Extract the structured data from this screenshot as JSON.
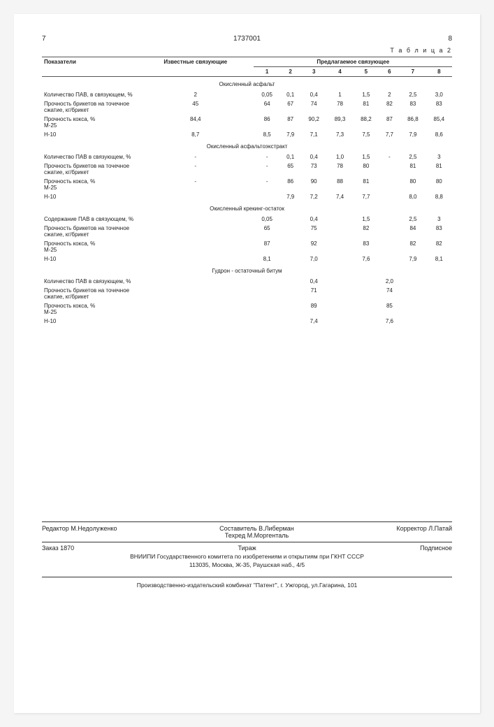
{
  "page_left": "7",
  "doc_number": "1737001",
  "page_right": "8",
  "table_label": "Т а б л и ц а 2",
  "header": {
    "col_label": "Показатели",
    "known": "Известные связующие",
    "proposed": "Предлагаемое связующее",
    "nums": [
      "1",
      "2",
      "3",
      "4",
      "5",
      "6",
      "7",
      "8"
    ]
  },
  "sections": [
    {
      "title": "Окисленный асфальт",
      "rows": [
        {
          "label": "Количество ПАВ, в связующем, %",
          "k": "2",
          "v": [
            "0,05",
            "0,1",
            "0,4",
            "1",
            "1,5",
            "2",
            "2,5",
            "3,0"
          ]
        },
        {
          "label": "Прочность брикетов на точечное сжатие, кг/брикет",
          "k": "45",
          "v": [
            "64",
            "67",
            "74",
            "78",
            "81",
            "82",
            "83",
            "83"
          ]
        },
        {
          "label": "Прочность кокса, %\n  М-25",
          "k": "84,4",
          "v": [
            "86",
            "87",
            "90,2",
            "89,3",
            "88,2",
            "87",
            "86,8",
            "85,4"
          ]
        },
        {
          "label": "  Н-10",
          "k": "8,7",
          "v": [
            "8,5",
            "7,9",
            "7,1",
            "7,3",
            "7,5",
            "7,7",
            "7,9",
            "8,6"
          ]
        }
      ]
    },
    {
      "title": "Окисленный асфальтоэкстракт",
      "rows": [
        {
          "label": "Количество ПАВ в связующем, %",
          "k": "-",
          "v": [
            "-",
            "0,1",
            "0,4",
            "1,0",
            "1,5",
            "-",
            "2,5",
            "3"
          ]
        },
        {
          "label": "Прочность брикетов на точечное сжатие, кг/брикет",
          "k": "-",
          "v": [
            "-",
            "65",
            "73",
            "78",
            "80",
            "",
            "81",
            "81"
          ]
        },
        {
          "label": "Прочность кокса, %\n  М-25",
          "k": "-",
          "v": [
            "-",
            "86",
            "90",
            "88",
            "81",
            "",
            "80",
            "80"
          ]
        },
        {
          "label": "  Н-10",
          "k": "",
          "v": [
            "",
            "7,9",
            "7,2",
            "7,4",
            "7,7",
            "",
            "8,0",
            "8,8"
          ]
        }
      ]
    },
    {
      "title": "Окисленный крекинг-остаток",
      "rows": [
        {
          "label": "Содержание ПАВ в связующем, %",
          "k": "",
          "v": [
            "0,05",
            "",
            "0,4",
            "",
            "1,5",
            "",
            "2,5",
            "3"
          ]
        },
        {
          "label": "Прочность брикетов на точечное сжатие, кг/брикет",
          "k": "",
          "v": [
            "65",
            "",
            "75",
            "",
            "82",
            "",
            "84",
            "83"
          ]
        },
        {
          "label": "Прочность кокса, %\n  М-25",
          "k": "",
          "v": [
            "87",
            "",
            "92",
            "",
            "83",
            "",
            "82",
            "82"
          ]
        },
        {
          "label": "  Н-10",
          "k": "",
          "v": [
            "8,1",
            "",
            "7,0",
            "",
            "7,6",
            "",
            "7,9",
            "8,1"
          ]
        }
      ]
    },
    {
      "title": "Гудрон - остаточный битум",
      "rows": [
        {
          "label": "Количество ПАВ в связующем, %",
          "k": "",
          "v": [
            "",
            "",
            "0,4",
            "",
            "",
            "2,0",
            "",
            ""
          ]
        },
        {
          "label": "Прочность брикетов на точечное сжатие, кг/брикет",
          "k": "",
          "v": [
            "",
            "",
            "71",
            "",
            "",
            "74",
            "",
            ""
          ]
        },
        {
          "label": "Прочность кокса, %\n  М-25",
          "k": "",
          "v": [
            "",
            "",
            "89",
            "",
            "",
            "85",
            "",
            ""
          ]
        },
        {
          "label": "  Н-10",
          "k": "",
          "v": [
            "",
            "",
            "7,4",
            "",
            "",
            "7,6",
            "",
            ""
          ]
        }
      ]
    }
  ],
  "footer": {
    "editor": "Редактор М.Недолуженко",
    "compiler": "Составитель   В.Либерман",
    "tehred": "Техред М.Моргенталь",
    "corrector": "Корректор  Л.Патай",
    "order": "Заказ 1870",
    "tirazh": "Тираж",
    "subscr": "Подписное",
    "org": "ВНИИПИ Государственного комитета по изобретениям и открытиям при ГКНТ СССР",
    "addr": "113035, Москва, Ж-35, Раушская наб., 4/5",
    "bottom": "Производственно-издательский комбинат \"Патент\", г. Ужгород, ул.Гагарина, 101"
  }
}
